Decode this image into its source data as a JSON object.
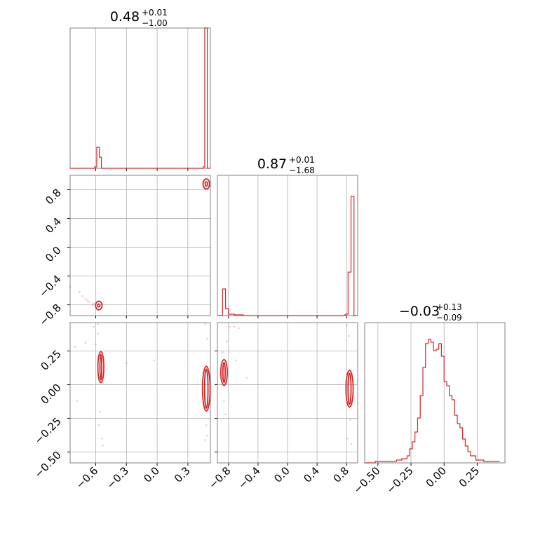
{
  "colors": {
    "series": "#d62728",
    "grid": "#b0b0b0",
    "frame": "#808080"
  },
  "chart_data": {
    "type": "corner",
    "grid": true,
    "panels": {
      "p1_hist": {
        "title": {
          "value": "0.48",
          "plus": "+0.01",
          "minus": "−1.00"
        },
        "xlim": [
          -0.85,
          0.52
        ],
        "ylim": [
          0,
          1.0
        ],
        "xticks": [
          -0.6,
          -0.3,
          0.0,
          0.3
        ],
        "steps": [
          [
            -0.9,
            0
          ],
          [
            -0.61,
            0.01
          ],
          [
            -0.59,
            0.15
          ],
          [
            -0.565,
            0.08
          ],
          [
            -0.545,
            0
          ],
          [
            0.45,
            0.01
          ],
          [
            0.465,
            1.0
          ],
          [
            0.49,
            0
          ],
          [
            0.52,
            0
          ]
        ]
      },
      "p2_hist": {
        "title": {
          "value": "0.87",
          "plus": "+0.01",
          "minus": "−1.68"
        },
        "xlim": [
          -0.95,
          0.95
        ],
        "ylim": [
          0,
          1.0
        ],
        "xticks": [
          -0.8,
          -0.4,
          0.0,
          0.4,
          0.8
        ],
        "xticklabels": [
          "−0.8",
          "−0.4",
          "0.0",
          "0.4",
          "0.8"
        ],
        "steps": [
          [
            -0.95,
            0
          ],
          [
            -0.88,
            0.19
          ],
          [
            -0.84,
            0.05
          ],
          [
            -0.8,
            0.01
          ],
          [
            -0.72,
            0.005
          ],
          [
            -0.6,
            0
          ],
          [
            0.78,
            0.01
          ],
          [
            0.82,
            0.31
          ],
          [
            0.86,
            0.85
          ],
          [
            0.9,
            0
          ],
          [
            0.95,
            0
          ]
        ]
      },
      "p3_hist": {
        "title": {
          "value": "−0.03",
          "plus": "+0.13",
          "minus": "−0.09"
        },
        "xlim": [
          -0.6,
          0.46
        ],
        "ylim": [
          0,
          1.0
        ],
        "xticks": [
          -0.5,
          -0.25,
          0.0,
          0.25
        ],
        "xticklabels": [
          "−0.50",
          "−0.25",
          "0.00",
          "0.25"
        ],
        "steps": [
          [
            -0.6,
            0
          ],
          [
            -0.52,
            0.01
          ],
          [
            -0.44,
            0.01
          ],
          [
            -0.36,
            0.02
          ],
          [
            -0.32,
            0.03
          ],
          [
            -0.28,
            0.05
          ],
          [
            -0.26,
            0.1
          ],
          [
            -0.24,
            0.15
          ],
          [
            -0.22,
            0.22
          ],
          [
            -0.2,
            0.32
          ],
          [
            -0.18,
            0.48
          ],
          [
            -0.16,
            0.68
          ],
          [
            -0.14,
            0.85
          ],
          [
            -0.12,
            0.88
          ],
          [
            -0.1,
            0.86
          ],
          [
            -0.08,
            0.8
          ],
          [
            -0.06,
            0.81
          ],
          [
            -0.04,
            0.85
          ],
          [
            -0.02,
            0.76
          ],
          [
            0.0,
            0.58
          ],
          [
            0.02,
            0.55
          ],
          [
            0.04,
            0.48
          ],
          [
            0.06,
            0.45
          ],
          [
            0.08,
            0.34
          ],
          [
            0.1,
            0.28
          ],
          [
            0.12,
            0.25
          ],
          [
            0.14,
            0.17
          ],
          [
            0.16,
            0.12
          ],
          [
            0.18,
            0.08
          ],
          [
            0.2,
            0.05
          ],
          [
            0.24,
            0.02
          ],
          [
            0.3,
            0.01
          ],
          [
            0.38,
            0.01
          ],
          [
            0.42,
            0
          ]
        ]
      },
      "p21": {
        "xlim": [
          -0.85,
          0.52
        ],
        "ylim": [
          -0.95,
          1.0
        ],
        "yticks": [
          -0.8,
          -0.4,
          0.0,
          0.4,
          0.8
        ],
        "yticklabels": [
          "−0.8",
          "−0.4",
          "0.0",
          "0.4",
          "0.8"
        ],
        "clusters": [
          {
            "cx": -0.57,
            "cy": -0.81,
            "rx": 0.015,
            "ry": 0.03
          },
          {
            "cx": 0.48,
            "cy": 0.88,
            "rx": 0.015,
            "ry": 0.04
          }
        ],
        "scatter": [
          [
            -0.62,
            -0.78
          ],
          [
            -0.66,
            -0.76
          ],
          [
            -0.7,
            -0.72
          ],
          [
            -0.73,
            -0.68
          ],
          [
            -0.76,
            -0.62
          ],
          [
            -0.85,
            -0.55
          ],
          [
            -0.63,
            -0.8
          ],
          [
            -0.68,
            -0.74
          ],
          [
            -0.59,
            -0.83
          ],
          [
            0.47,
            0.84
          ],
          [
            0.49,
            0.86
          ],
          [
            0.46,
            0.9
          ]
        ]
      },
      "p31": {
        "xlim": [
          -0.85,
          0.52
        ],
        "ylim": [
          -0.58,
          0.46
        ],
        "yticks": [
          -0.5,
          -0.25,
          0.0,
          0.25
        ],
        "yticklabels": [
          "−0.50",
          "−0.25",
          "0.00",
          "0.25"
        ],
        "clusters": [
          {
            "cx": -0.55,
            "cy": 0.13,
            "rx": 0.012,
            "ry": 0.1
          },
          {
            "cx": 0.48,
            "cy": -0.03,
            "rx": 0.02,
            "ry": 0.15
          }
        ],
        "scatter": [
          [
            -0.62,
            0.43
          ],
          [
            -0.58,
            0.38
          ],
          [
            -0.6,
            0.3
          ],
          [
            -0.56,
            -0.2
          ],
          [
            -0.54,
            -0.4
          ],
          [
            -0.53,
            -0.45
          ],
          [
            -0.57,
            -0.3
          ],
          [
            -0.7,
            0.31
          ],
          [
            -0.3,
            0.16
          ],
          [
            -0.8,
            0.28
          ],
          [
            -0.78,
            -0.12
          ],
          [
            -0.58,
            0.45
          ],
          [
            0.47,
            0.45
          ],
          [
            0.49,
            0.34
          ],
          [
            0.48,
            -0.3
          ],
          [
            0.47,
            -0.41
          ],
          [
            0.49,
            -0.38
          ],
          [
            -0.03,
            0.18
          ]
        ]
      },
      "p32": {
        "xlim": [
          -0.95,
          0.95
        ],
        "ylim": [
          -0.58,
          0.46
        ],
        "clusters": [
          {
            "cx": -0.86,
            "cy": 0.09,
            "rx": 0.02,
            "ry": 0.08
          },
          {
            "cx": 0.84,
            "cy": -0.03,
            "rx": 0.025,
            "ry": 0.12
          }
        ],
        "scatter": [
          [
            -0.78,
            0.43
          ],
          [
            -0.72,
            0.43
          ],
          [
            -0.66,
            0.42
          ],
          [
            -0.82,
            0.32
          ],
          [
            -0.86,
            -0.12
          ],
          [
            -0.84,
            -0.22
          ],
          [
            -0.88,
            0.24
          ],
          [
            -0.7,
            0.18
          ],
          [
            -0.55,
            0.05
          ],
          [
            0.8,
            0.44
          ],
          [
            0.83,
            0.36
          ],
          [
            0.85,
            -0.26
          ],
          [
            0.81,
            -0.4
          ],
          [
            0.86,
            -0.44
          ]
        ]
      }
    }
  }
}
